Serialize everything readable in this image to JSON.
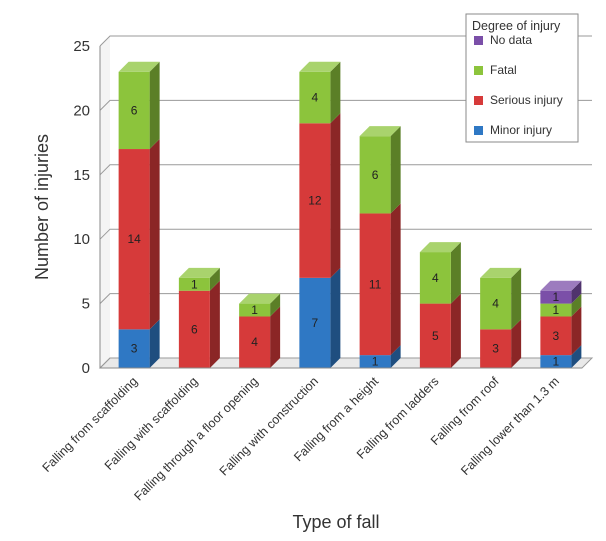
{
  "chart_data": {
    "type": "bar",
    "stacked": true,
    "three_d": true,
    "xlabel": "Type of fall",
    "ylabel": "Number of injuries",
    "ylim": [
      0,
      25
    ],
    "yticks": [
      0,
      5,
      10,
      15,
      20,
      25
    ],
    "grid": true,
    "categories": [
      "Falling from scaffolding",
      "Falling with scaffolding",
      "Falling through a floor opening",
      "Falling with construction",
      "Falling from a height",
      "Falling from ladders",
      "Falling from roof",
      "Falling lower than 1.3 m"
    ],
    "series": [
      {
        "name": "Minor injury",
        "color": "#2f78c4",
        "values": [
          3,
          0,
          0,
          7,
          1,
          0,
          0,
          1
        ]
      },
      {
        "name": "Serious injury",
        "color": "#d63a3a",
        "values": [
          14,
          6,
          4,
          12,
          11,
          5,
          3,
          3
        ]
      },
      {
        "name": "Fatal",
        "color": "#8cc43c",
        "values": [
          6,
          1,
          1,
          4,
          6,
          4,
          4,
          1
        ]
      },
      {
        "name": "No data",
        "color": "#7b4fa8",
        "values": [
          0,
          0,
          0,
          0,
          0,
          0,
          0,
          1
        ]
      }
    ],
    "legend": {
      "title": "Degree of injury",
      "placement": "top-right",
      "order": [
        "No data",
        "Fatal",
        "Serious injury",
        "Minor injury"
      ]
    }
  }
}
